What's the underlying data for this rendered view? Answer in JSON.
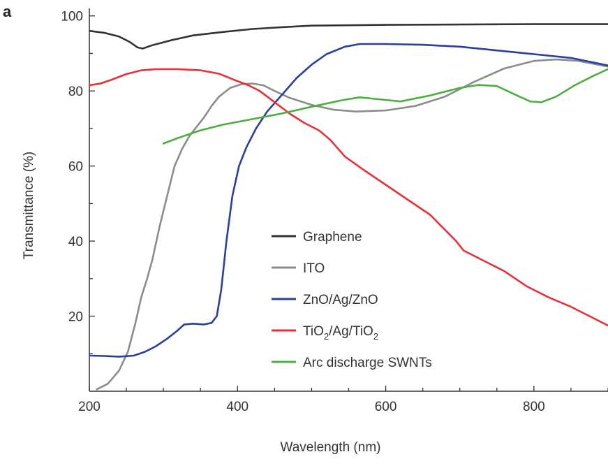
{
  "chart_data": {
    "type": "line",
    "panel_label": "a",
    "title": "",
    "xlabel": "Wavelength (nm)",
    "ylabel": "Transmittance (%)",
    "xlim": [
      200,
      900
    ],
    "ylim": [
      0,
      102
    ],
    "x_ticks": [
      200,
      400,
      600,
      800
    ],
    "y_ticks": [
      20,
      40,
      60,
      80,
      100
    ],
    "grid": false,
    "legend_position": "center-right",
    "series": [
      {
        "name": "Graphene",
        "color": "#333333",
        "points": [
          [
            200,
            96.0
          ],
          [
            220,
            95.5
          ],
          [
            240,
            94.5
          ],
          [
            255,
            93.0
          ],
          [
            265,
            91.6
          ],
          [
            272,
            91.3
          ],
          [
            285,
            92.2
          ],
          [
            310,
            93.5
          ],
          [
            340,
            94.8
          ],
          [
            380,
            95.7
          ],
          [
            420,
            96.5
          ],
          [
            460,
            97.0
          ],
          [
            500,
            97.4
          ],
          [
            600,
            97.6
          ],
          [
            700,
            97.7
          ],
          [
            800,
            97.8
          ],
          [
            900,
            97.8
          ]
        ]
      },
      {
        "name": "ITO",
        "color": "#8c8c8c",
        "points": [
          [
            210,
            0.5
          ],
          [
            225,
            2.0
          ],
          [
            240,
            5.5
          ],
          [
            252,
            10.5
          ],
          [
            262,
            18.0
          ],
          [
            270,
            25.0
          ],
          [
            278,
            30.0
          ],
          [
            285,
            35.0
          ],
          [
            295,
            44.0
          ],
          [
            305,
            52.0
          ],
          [
            315,
            60.0
          ],
          [
            325,
            64.5
          ],
          [
            335,
            68.0
          ],
          [
            345,
            70.5
          ],
          [
            355,
            73.0
          ],
          [
            365,
            76.0
          ],
          [
            375,
            78.5
          ],
          [
            390,
            80.8
          ],
          [
            405,
            81.8
          ],
          [
            420,
            82.0
          ],
          [
            435,
            81.5
          ],
          [
            450,
            80.0
          ],
          [
            470,
            78.2
          ],
          [
            500,
            76.3
          ],
          [
            530,
            75.0
          ],
          [
            560,
            74.5
          ],
          [
            600,
            74.8
          ],
          [
            640,
            76.0
          ],
          [
            680,
            78.5
          ],
          [
            720,
            82.5
          ],
          [
            760,
            86.0
          ],
          [
            800,
            88.0
          ],
          [
            830,
            88.4
          ],
          [
            860,
            88.0
          ],
          [
            900,
            86.5
          ]
        ]
      },
      {
        "name": "ZnO/Ag/ZnO",
        "color": "#2b3f9b",
        "points": [
          [
            200,
            9.5
          ],
          [
            220,
            9.4
          ],
          [
            240,
            9.2
          ],
          [
            260,
            9.5
          ],
          [
            275,
            10.5
          ],
          [
            290,
            12.0
          ],
          [
            305,
            14.0
          ],
          [
            318,
            16.0
          ],
          [
            328,
            17.8
          ],
          [
            340,
            18.0
          ],
          [
            355,
            17.8
          ],
          [
            365,
            18.2
          ],
          [
            372,
            20.0
          ],
          [
            378,
            27.0
          ],
          [
            385,
            40.0
          ],
          [
            393,
            52.0
          ],
          [
            402,
            60.0
          ],
          [
            412,
            65.0
          ],
          [
            425,
            70.0
          ],
          [
            440,
            74.5
          ],
          [
            460,
            79.0
          ],
          [
            480,
            83.5
          ],
          [
            500,
            87.0
          ],
          [
            520,
            89.8
          ],
          [
            545,
            91.8
          ],
          [
            565,
            92.5
          ],
          [
            600,
            92.5
          ],
          [
            650,
            92.3
          ],
          [
            700,
            91.8
          ],
          [
            750,
            90.8
          ],
          [
            800,
            89.8
          ],
          [
            850,
            88.8
          ],
          [
            900,
            86.8
          ]
        ]
      },
      {
        "name": "TiO2/Ag/TiO2",
        "legend_label": [
          "TiO",
          "2",
          "/Ag/TiO",
          "2"
        ],
        "color": "#e8303a",
        "points": [
          [
            200,
            81.5
          ],
          [
            215,
            82.0
          ],
          [
            230,
            83.0
          ],
          [
            250,
            84.5
          ],
          [
            270,
            85.5
          ],
          [
            290,
            85.8
          ],
          [
            320,
            85.8
          ],
          [
            350,
            85.5
          ],
          [
            375,
            84.6
          ],
          [
            395,
            83.0
          ],
          [
            415,
            81.5
          ],
          [
            430,
            80.0
          ],
          [
            450,
            77.0
          ],
          [
            470,
            74.0
          ],
          [
            490,
            71.5
          ],
          [
            510,
            69.5
          ],
          [
            525,
            67.0
          ],
          [
            545,
            62.5
          ],
          [
            570,
            59.0
          ],
          [
            600,
            55.0
          ],
          [
            630,
            51.0
          ],
          [
            660,
            47.0
          ],
          [
            695,
            40.0
          ],
          [
            705,
            37.5
          ],
          [
            730,
            35.0
          ],
          [
            760,
            32.0
          ],
          [
            790,
            28.0
          ],
          [
            820,
            25.0
          ],
          [
            850,
            22.5
          ],
          [
            875,
            20.0
          ],
          [
            900,
            17.5
          ]
        ]
      },
      {
        "name": "Arc discharge SWNTs",
        "color": "#4cae3f",
        "points": [
          [
            300,
            66.0
          ],
          [
            320,
            67.5
          ],
          [
            350,
            69.5
          ],
          [
            380,
            71.0
          ],
          [
            420,
            72.5
          ],
          [
            460,
            74.0
          ],
          [
            500,
            75.8
          ],
          [
            540,
            77.5
          ],
          [
            565,
            78.3
          ],
          [
            590,
            77.8
          ],
          [
            620,
            77.2
          ],
          [
            660,
            78.8
          ],
          [
            700,
            80.8
          ],
          [
            725,
            81.6
          ],
          [
            750,
            81.3
          ],
          [
            775,
            79.0
          ],
          [
            795,
            77.2
          ],
          [
            810,
            77.0
          ],
          [
            830,
            78.5
          ],
          [
            855,
            81.5
          ],
          [
            880,
            84.0
          ],
          [
            900,
            85.8
          ]
        ]
      }
    ]
  }
}
